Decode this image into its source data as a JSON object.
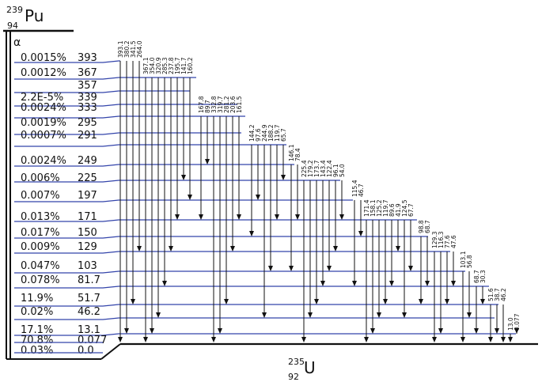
{
  "parent": {
    "mass": "239",
    "z": "94",
    "symbol": "Pu"
  },
  "daughter": {
    "mass": "235",
    "z": "92",
    "symbol": "U"
  },
  "decay_mode": "α",
  "colors": {
    "level_line": "#3344aa",
    "text": "#111111",
    "frame": "#111111"
  },
  "levels": [
    {
      "intensity": "0.0015%",
      "energy": "393"
    },
    {
      "intensity": "0.0012%",
      "energy": "367"
    },
    {
      "intensity": "",
      "energy": "357"
    },
    {
      "intensity": "2.2E-5%",
      "energy": "339"
    },
    {
      "intensity": "0.0024%",
      "energy": "333"
    },
    {
      "intensity": "0.0019%",
      "energy": "295"
    },
    {
      "intensity": "0.0007%",
      "energy": "291"
    },
    {
      "intensity": "0.0024%",
      "energy": "249"
    },
    {
      "intensity": "0.006%",
      "energy": "225"
    },
    {
      "intensity": "0.007%",
      "energy": "197"
    },
    {
      "intensity": "0.013%",
      "energy": "171"
    },
    {
      "intensity": "0.017%",
      "energy": "150"
    },
    {
      "intensity": "0.009%",
      "energy": "129"
    },
    {
      "intensity": "0.047%",
      "energy": "103"
    },
    {
      "intensity": "0.078%",
      "energy": "81.7"
    },
    {
      "intensity": "11.9%",
      "energy": "51.7"
    },
    {
      "intensity": "0.02%",
      "energy": "46.2"
    },
    {
      "intensity": "17.1%",
      "energy": "13.1"
    },
    {
      "intensity": "70.8%",
      "energy": "0.077"
    },
    {
      "intensity": "0.03%",
      "energy": "0.0"
    }
  ],
  "gamma_groups": [
    {
      "from": "393",
      "gammas": [
        "393.1",
        "380.2",
        "341.5",
        "264.0"
      ]
    },
    {
      "from": "367",
      "gammas": [
        "367.1",
        "354.0",
        "320.9",
        "285.3",
        "237.8",
        "195.7",
        "141.7",
        "160.2"
      ]
    },
    {
      "from": "333",
      "gammas": [
        "167.8",
        "89.7",
        "332.8",
        "319.7",
        "281.2",
        "203.6",
        "161.5"
      ]
    },
    {
      "from": "291",
      "gammas": [
        "144.2",
        "97.6",
        "244.9",
        "188.2",
        "119.7",
        "65.7"
      ]
    },
    {
      "from": "249",
      "gammas": [
        "146.1",
        "78.4"
      ]
    },
    {
      "from": "225",
      "gammas": [
        "225.4",
        "179.2",
        "173.7",
        "143.4",
        "122.4",
        "96.1",
        "54.0"
      ]
    },
    {
      "from": "197",
      "gammas": [
        "115.4",
        "46.7"
      ]
    },
    {
      "from": "171",
      "gammas": [
        "171.4",
        "158.1",
        "125.2",
        "119.7",
        "89.6",
        "41.9",
        "124.5",
        "67.7"
      ]
    },
    {
      "from": "150",
      "gammas": [
        "98.8",
        "68.7"
      ]
    },
    {
      "from": "129",
      "gammas": [
        "129.3",
        "116.3",
        "77.6",
        "47.6"
      ]
    },
    {
      "from": "103",
      "gammas": [
        "103.1",
        "56.8"
      ]
    },
    {
      "from": "81.7",
      "gammas": [
        "68.7",
        "30.3"
      ]
    },
    {
      "from": "51.7",
      "gammas": [
        "51.6",
        "38.7",
        "46.2"
      ]
    },
    {
      "from": "13.1",
      "gammas": [
        "13.0",
        "0.077"
      ]
    }
  ]
}
